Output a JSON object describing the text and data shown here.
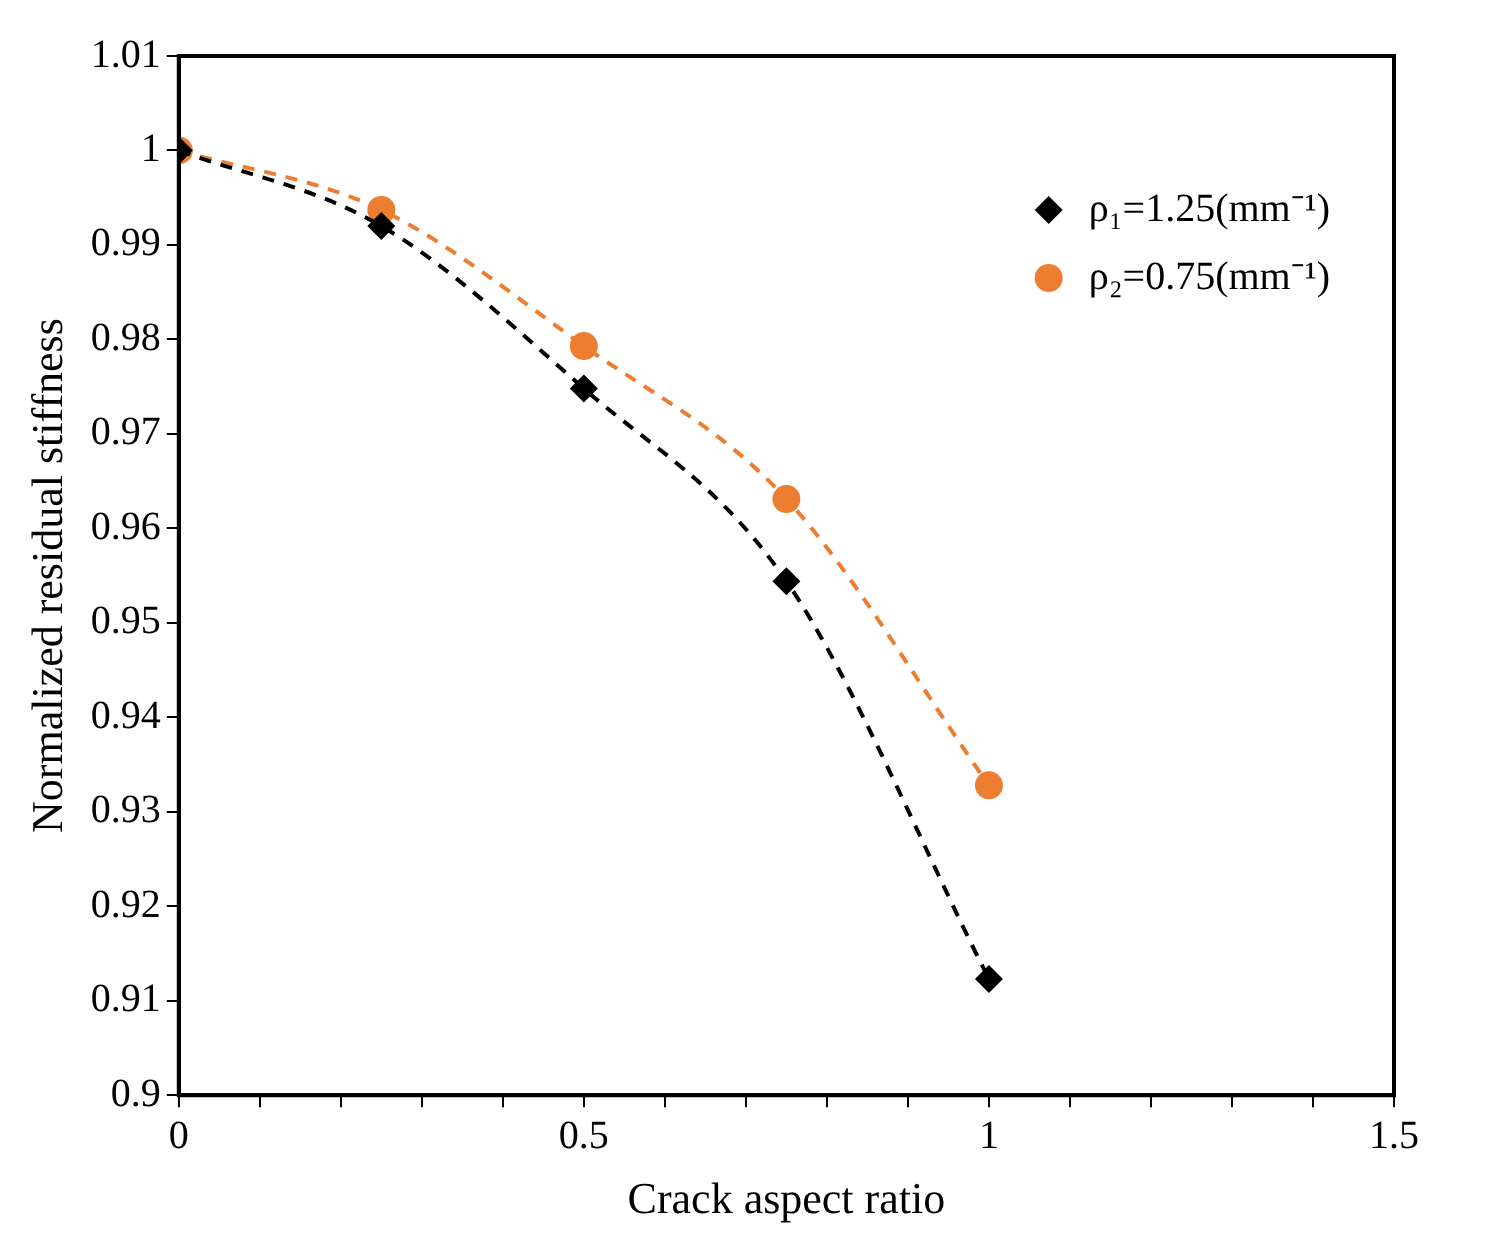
{
  "chart_data": {
    "type": "line",
    "xlabel": "Crack aspect ratio",
    "ylabel": "Normalized residual stiffness",
    "x": [
      0,
      0.25,
      0.5,
      0.75,
      1
    ],
    "series": [
      {
        "name": "ρ₁=1.25(mm⁻¹)",
        "color": "#000000",
        "marker": "diamond",
        "line_style": "dashed",
        "values": [
          1,
          0.992,
          0.9748,
          0.9544,
          0.9123
        ]
      },
      {
        "name": "ρ₂=0.75(mm⁻¹)",
        "color": "#ed7d31",
        "marker": "circle",
        "line_style": "dashed",
        "values": [
          1,
          0.9937,
          0.9793,
          0.9631,
          0.9328
        ]
      }
    ],
    "xlim": [
      0,
      1.5
    ],
    "xticks": [
      0,
      {
        "value": 0.1,
        "label": null
      },
      {
        "value": 0.2,
        "label": null
      },
      {
        "value": 0.3,
        "label": null
      },
      {
        "value": 0.4,
        "label": null
      },
      0.5,
      {
        "value": 0.6,
        "label": null
      },
      {
        "value": 0.7,
        "label": null
      },
      {
        "value": 0.8,
        "label": null
      },
      {
        "value": 0.9,
        "label": null
      },
      1,
      {
        "value": 1.1,
        "label": null
      },
      {
        "value": 1.2,
        "label": null
      },
      {
        "value": 1.3,
        "label": null
      },
      {
        "value": 1.4,
        "label": null
      },
      1.5
    ],
    "ylim": [
      0.9,
      1.01
    ],
    "yticks": [
      0.9,
      0.91,
      0.92,
      0.93,
      0.94,
      0.95,
      0.96,
      0.97,
      0.98,
      0.99,
      1,
      1.01
    ],
    "legend": "top right"
  }
}
